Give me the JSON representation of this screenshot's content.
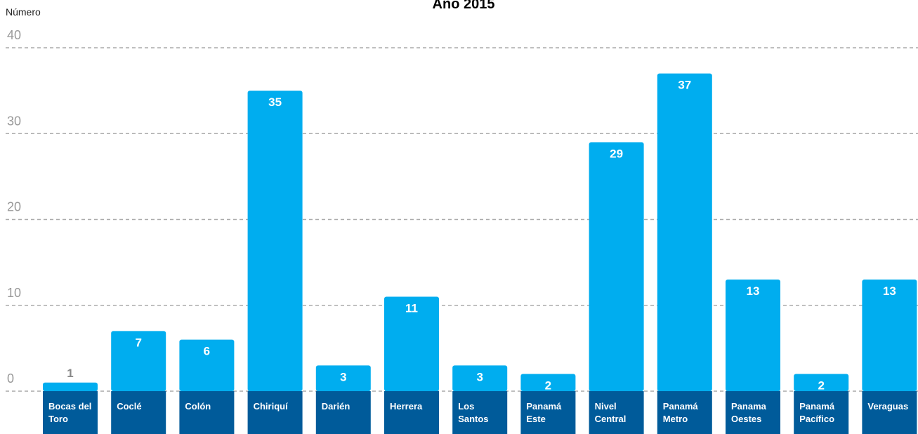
{
  "chart_data": {
    "type": "bar",
    "title": "Año 2015",
    "y_label": "Número",
    "categories": [
      "Bocas del Toro",
      "Coclé",
      "Colón",
      "Chiriquí",
      "Darién",
      "Herrera",
      "Los Santos",
      "Panamá Este",
      "Nivel Central",
      "Panamá Metro",
      "Panama Oestes",
      "Panamá Pacífico",
      "Veraguas"
    ],
    "values": [
      1,
      7,
      6,
      35,
      3,
      11,
      3,
      2,
      29,
      37,
      13,
      2,
      13
    ],
    "color": "#00adef",
    "label_band_color": "#005b9a",
    "ylim": [
      0,
      40
    ],
    "yticks": [
      0,
      10,
      20,
      30,
      40
    ],
    "grid": true
  }
}
